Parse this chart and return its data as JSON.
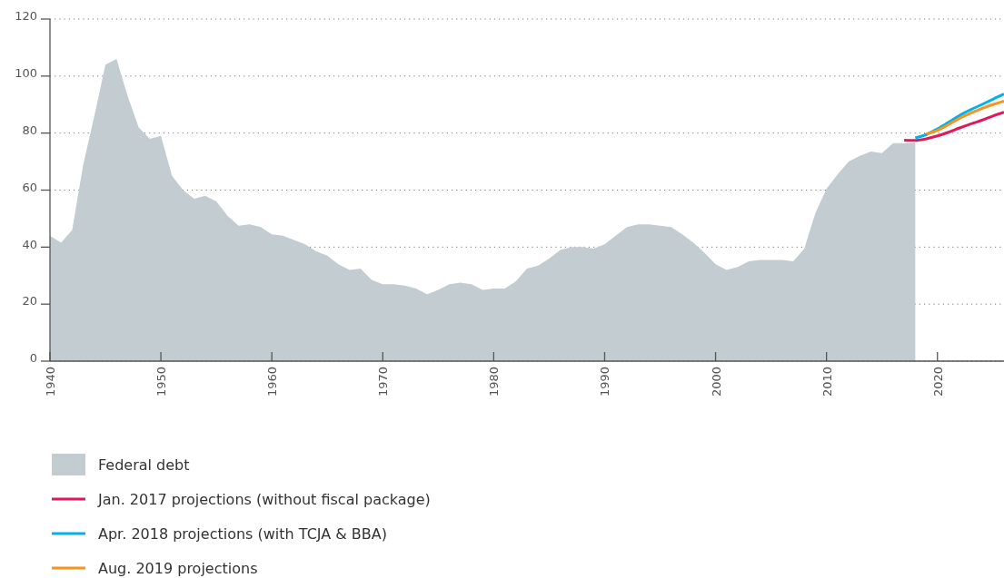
{
  "chart_data": {
    "type": "area",
    "xlim": [
      1940,
      2026
    ],
    "xticks": [
      1940,
      1950,
      1960,
      1970,
      1980,
      1990,
      2000,
      2010,
      2020
    ],
    "ylim": [
      0,
      120
    ],
    "yticks": [
      0,
      20,
      40,
      60,
      80,
      100,
      120
    ],
    "grid": "y",
    "legend": "bottom",
    "series": [
      {
        "name": "Federal debt",
        "color": "#c3ccd0",
        "x": [
          1940,
          1941,
          1942,
          1943,
          1944,
          1945,
          1946,
          1947,
          1948,
          1949,
          1950,
          1951,
          1952,
          1953,
          1954,
          1955,
          1956,
          1957,
          1958,
          1959,
          1960,
          1961,
          1962,
          1963,
          1964,
          1965,
          1966,
          1967,
          1968,
          1969,
          1970,
          1971,
          1972,
          1973,
          1974,
          1975,
          1976,
          1977,
          1978,
          1979,
          1980,
          1981,
          1982,
          1983,
          1984,
          1985,
          1986,
          1987,
          1988,
          1989,
          1990,
          1991,
          1992,
          1993,
          1994,
          1995,
          1996,
          1997,
          1998,
          1999,
          2000,
          2001,
          2002,
          2003,
          2004,
          2005,
          2006,
          2007,
          2008,
          2009,
          2010,
          2011,
          2012,
          2013,
          2014,
          2015,
          2016,
          2017,
          2018
        ],
        "values": [
          44,
          41.5,
          46,
          69,
          86,
          104,
          106,
          93,
          82,
          78,
          79,
          65,
          60,
          57,
          58,
          56,
          51,
          47.5,
          48,
          47,
          44.5,
          44,
          42.5,
          41,
          38.5,
          37,
          34,
          32,
          32.5,
          28.5,
          27,
          27,
          26.5,
          25.5,
          23.5,
          25,
          27,
          27.5,
          27,
          25,
          25.5,
          25.5,
          28,
          32.5,
          33.5,
          36,
          39,
          40,
          40,
          39.5,
          41,
          44,
          47,
          48,
          48,
          47.5,
          47,
          44.5,
          41.5,
          38,
          34,
          32,
          33,
          35,
          35.5,
          35.5,
          35.5,
          35,
          39.5,
          52,
          60.5,
          65.5,
          70,
          72,
          73.5,
          73,
          76.5,
          76.5,
          76.7
        ]
      },
      {
        "name": "Jan. 2017 projections (without fiscal package)",
        "type": "line",
        "color": "#e0185a",
        "x": [
          2017,
          2018,
          2019,
          2020,
          2021,
          2022,
          2023,
          2024,
          2025,
          2026
        ],
        "values": [
          77.5,
          77.4,
          78,
          79,
          80.3,
          81.8,
          83.2,
          84.5,
          86,
          87.3
        ]
      },
      {
        "name": "Apr. 2018 projections (with TCJA & BBA)",
        "type": "line",
        "color": "#00b0f0",
        "x": [
          2018,
          2019,
          2020,
          2021,
          2022,
          2023,
          2024,
          2025,
          2026
        ],
        "values": [
          78.3,
          79.5,
          81.5,
          83.8,
          86.2,
          88.2,
          90,
          91.9,
          93.7
        ]
      },
      {
        "name": "Aug. 2019 projections",
        "type": "line",
        "color": "#f7941d",
        "x": [
          2019,
          2020,
          2021,
          2022,
          2023,
          2024,
          2025,
          2026
        ],
        "values": [
          79.7,
          81,
          83,
          85.2,
          87,
          88.6,
          90,
          91.2
        ]
      }
    ]
  }
}
